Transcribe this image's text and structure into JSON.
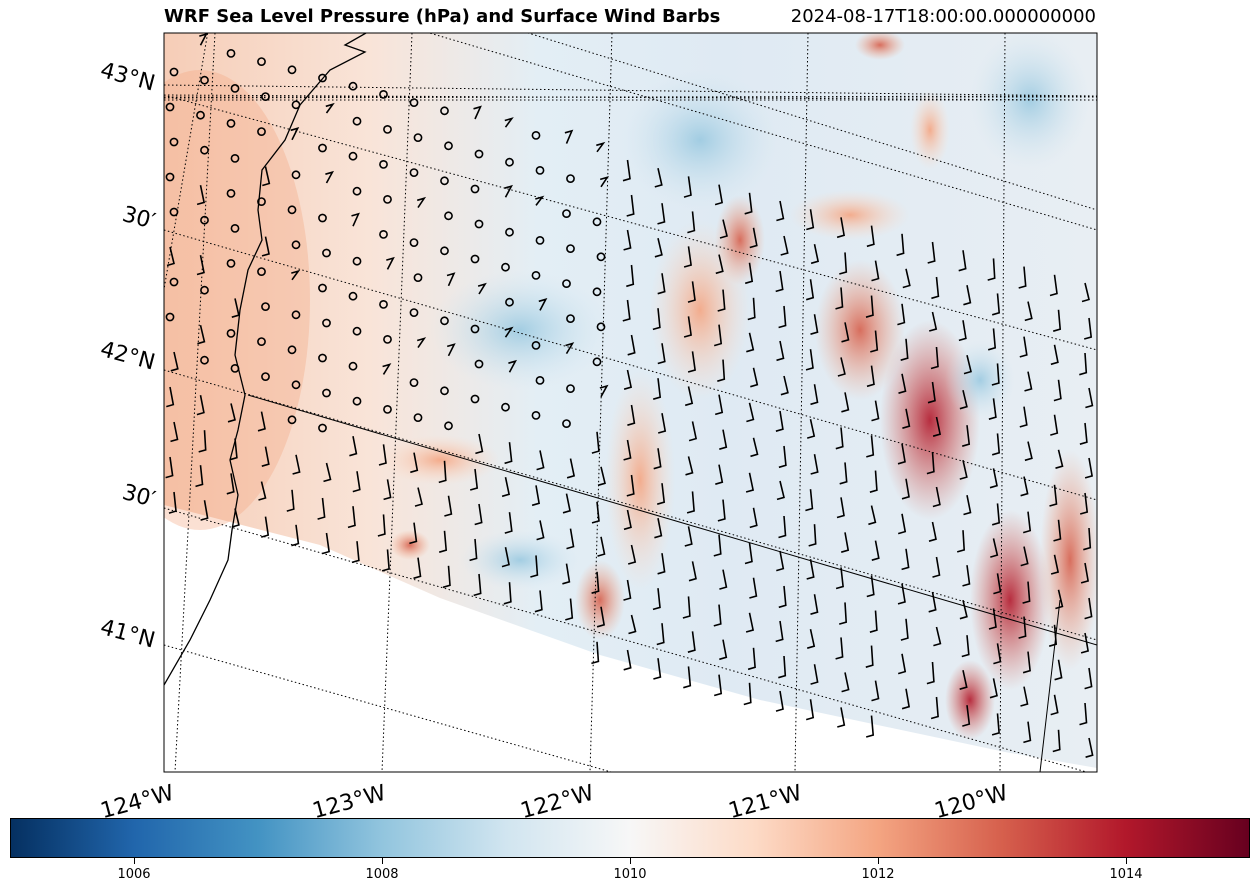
{
  "title": "WRF Sea Level Pressure (hPa) and Surface Wind Barbs",
  "timestamp": "2024-08-17T18:00:00.000000000",
  "latitude_labels": [
    "43°N",
    "30′",
    "42°N",
    "30′",
    "41°N"
  ],
  "longitude_labels": [
    "124°W",
    "123°W",
    "122°W",
    "121°W",
    "120°W"
  ],
  "colorbar": {
    "colormap": "RdBu_r",
    "range": [
      1005,
      1015
    ],
    "ticks": [
      "1006",
      "1008",
      "1010",
      "1012",
      "1014"
    ],
    "colors": [
      "#053061",
      "#2166ac",
      "#4393c3",
      "#92c5de",
      "#d1e5f0",
      "#f7f7f7",
      "#fddbc7",
      "#f4a582",
      "#d6604d",
      "#b2182b",
      "#67001f"
    ]
  },
  "map_features": [
    "coastline",
    "state-border-ca-or",
    "state-border-ca-nv",
    "graticule-dotted",
    "wind-barbs",
    "calm-wind-circles"
  ]
}
